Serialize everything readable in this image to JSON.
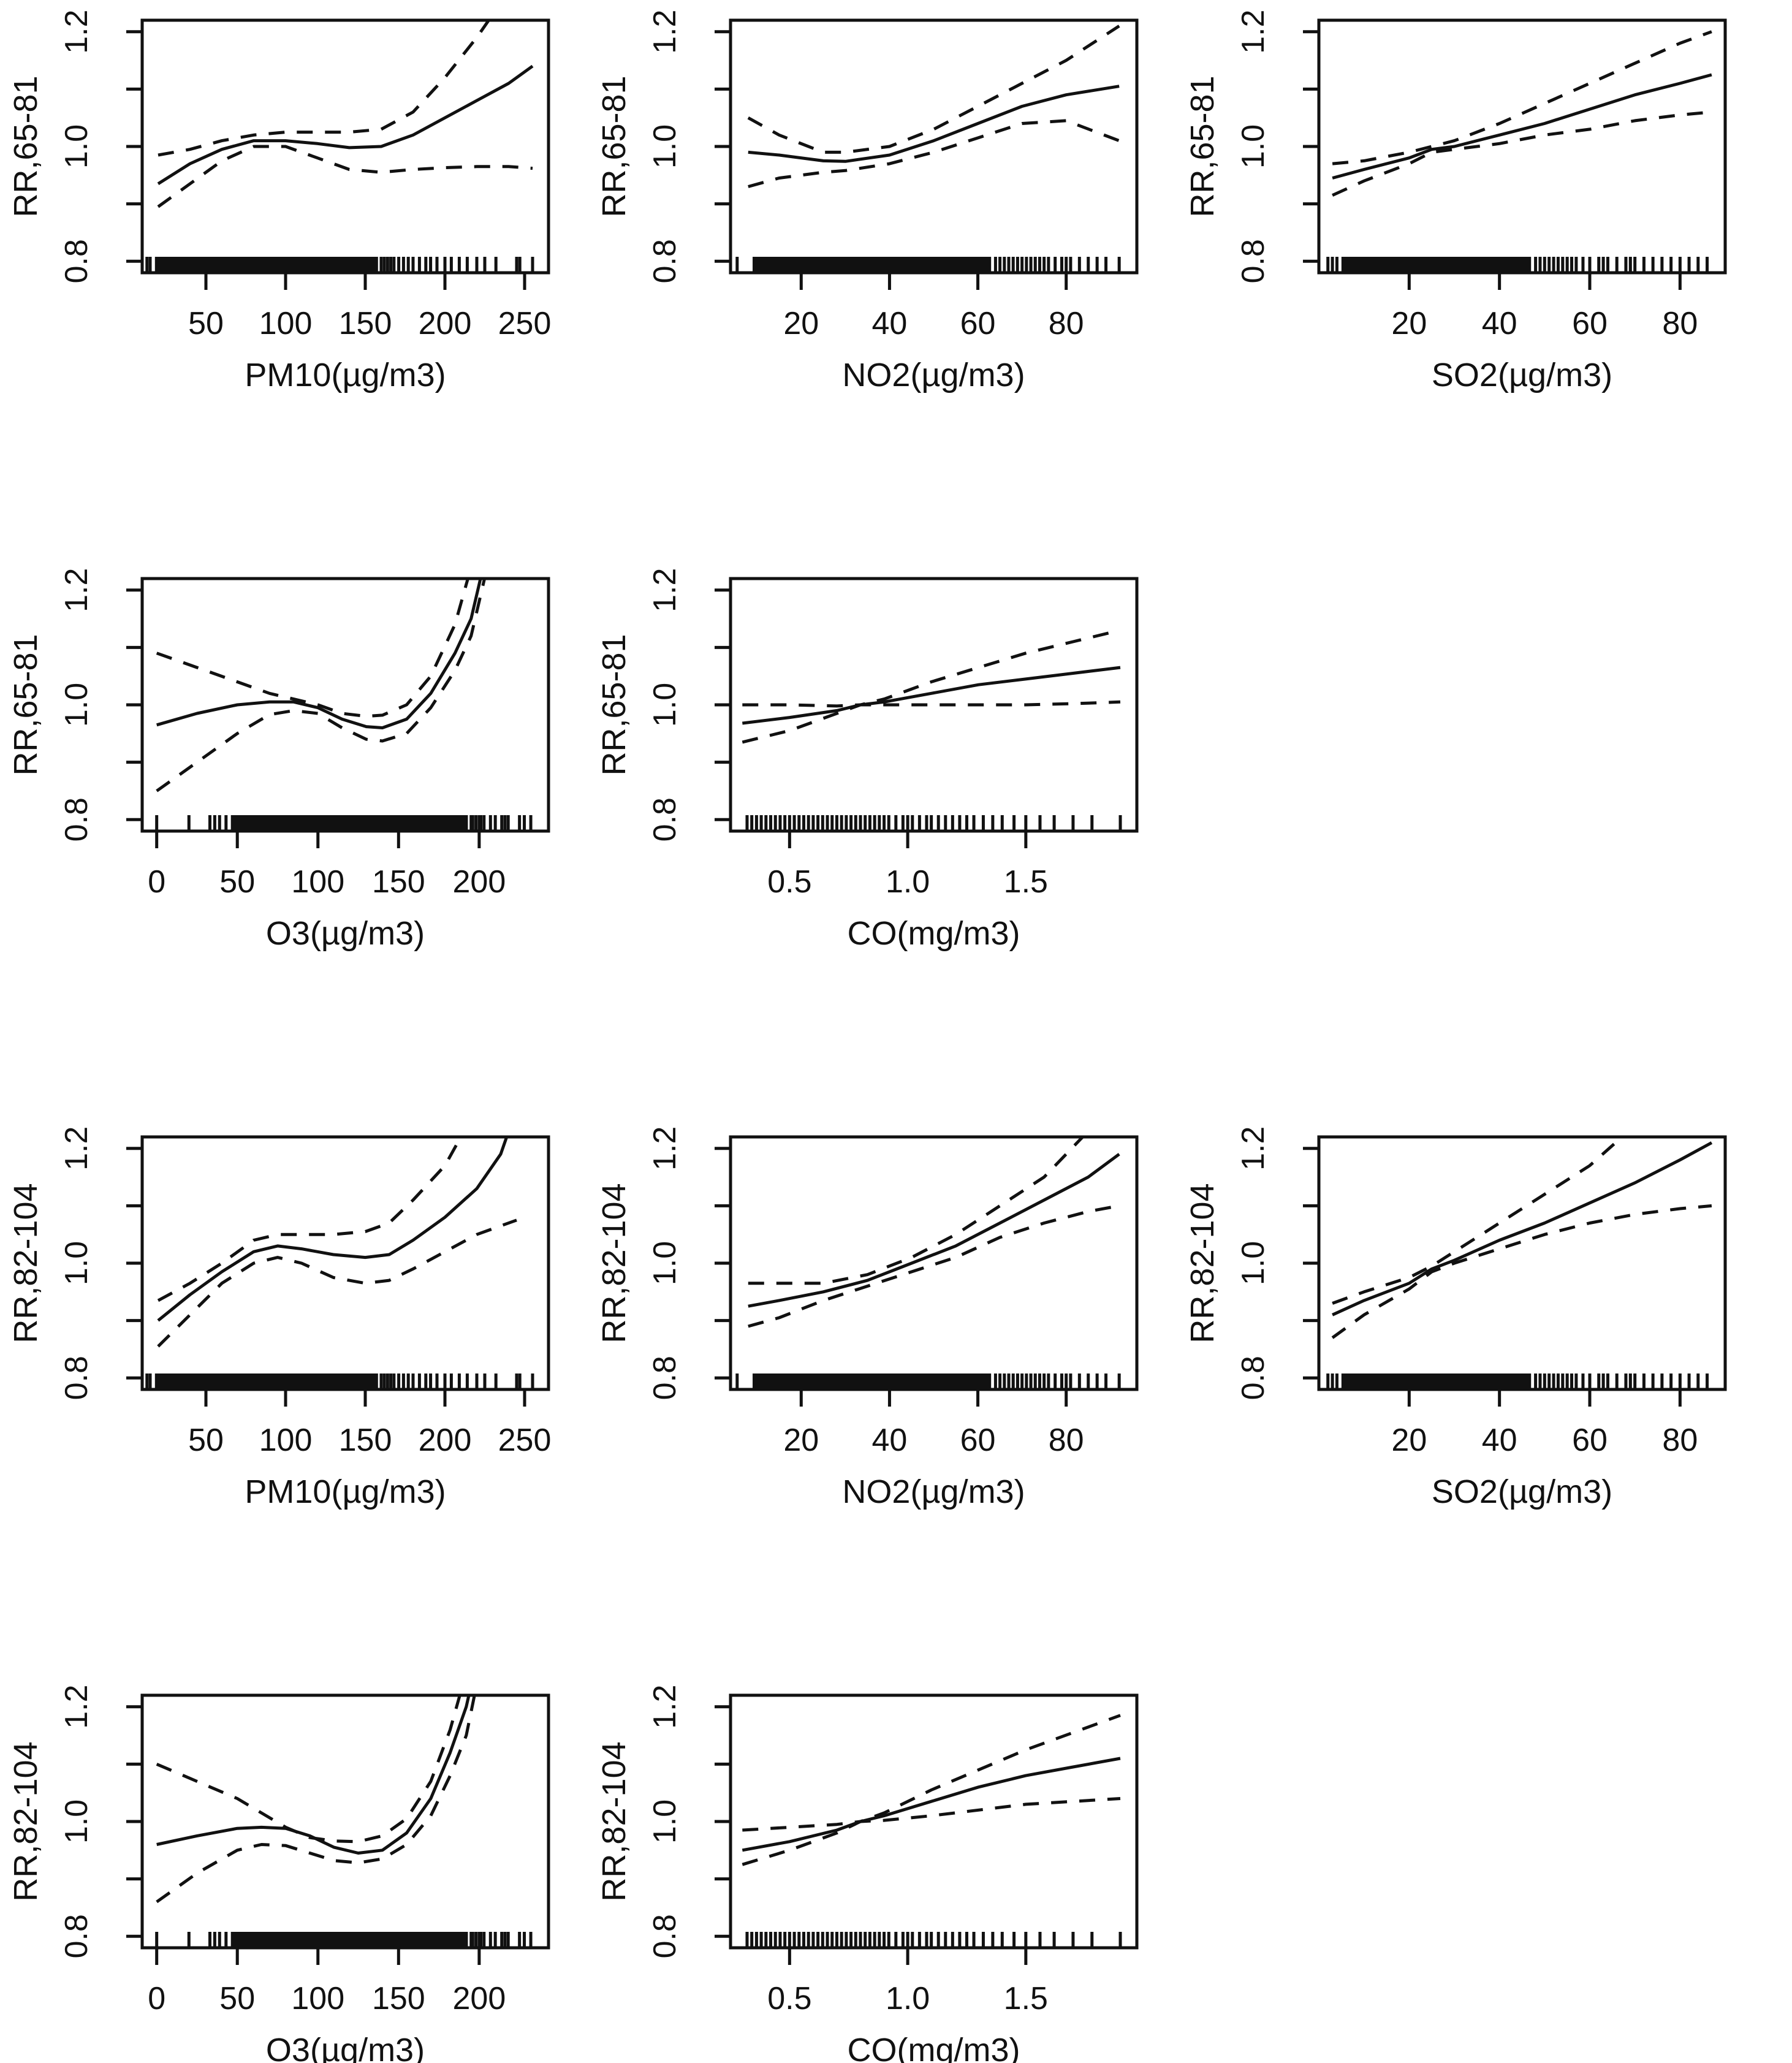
{
  "figure": {
    "background": "#ffffff",
    "ink_color": "#111111",
    "description": "Exposure-response curves: relative risk (RR) with 95% confidence bands vs pollutant concentrations, with data rug along the x-axis"
  },
  "axes_common": {
    "y_ticks": [
      0.8,
      0.9,
      1.0,
      1.1,
      1.2
    ],
    "y_labeled_ticks": [
      "0.8",
      "1.0",
      "1.2"
    ],
    "y_range": [
      0.78,
      1.22
    ]
  },
  "x_axes": {
    "PM10": {
      "label": "PM10(µg/m3)",
      "range": [
        10,
        265
      ],
      "ticks": [
        50,
        100,
        150,
        200,
        250
      ],
      "tick_labels": [
        "50",
        "100",
        "150",
        "200",
        "250"
      ]
    },
    "NO2": {
      "label": "NO2(µg/m3)",
      "range": [
        4,
        96
      ],
      "ticks": [
        20,
        40,
        60,
        80
      ],
      "tick_labels": [
        "20",
        "40",
        "60",
        "80"
      ]
    },
    "SO2": {
      "label": "SO2(µg/m3)",
      "range": [
        0,
        90
      ],
      "ticks": [
        20,
        40,
        60,
        80
      ],
      "tick_labels": [
        "20",
        "40",
        "60",
        "80"
      ]
    },
    "O3": {
      "label": "O3(µg/m3)",
      "range": [
        -9,
        243
      ],
      "ticks": [
        0,
        50,
        100,
        150,
        200
      ],
      "tick_labels": [
        "0",
        "50",
        "100",
        "150",
        "200"
      ]
    },
    "CO": {
      "label": "CO(mg/m3)",
      "range": [
        0.25,
        1.97
      ],
      "ticks": [
        0.5,
        1.0,
        1.5
      ],
      "tick_labels": [
        "0.5",
        "1.0",
        "1.5"
      ]
    }
  },
  "rugs": {
    "PM10": {
      "dense": [
        [
          18,
          158
        ]
      ],
      "ticks": [
        13,
        15,
        160,
        162,
        164,
        166,
        168,
        171,
        174,
        177,
        180,
        184,
        188,
        191,
        195,
        200,
        204,
        209,
        214,
        220,
        225,
        232,
        245,
        247,
        255
      ]
    },
    "NO2": {
      "dense": [
        [
          9,
          63
        ]
      ],
      "ticks": [
        5.5,
        64,
        65,
        66,
        67,
        68,
        69,
        70,
        71,
        72,
        73,
        74,
        75,
        76,
        77.5,
        79,
        80,
        81,
        83,
        85,
        87,
        89,
        92
      ]
    },
    "SO2": {
      "dense": [
        [
          5,
          47
        ]
      ],
      "ticks": [
        2,
        3,
        4,
        48,
        49,
        50,
        51,
        52,
        53,
        54,
        55,
        56,
        57,
        58.5,
        60,
        62,
        63,
        64,
        66,
        68,
        69,
        70,
        72,
        74,
        76,
        78,
        80,
        82,
        84,
        86
      ]
    },
    "O3": {
      "dense": [
        [
          46,
          193
        ]
      ],
      "ticks": [
        0,
        20,
        33,
        36,
        39,
        43,
        195,
        196,
        198,
        200,
        201,
        203,
        207,
        210,
        214,
        216,
        218,
        225,
        228,
        232
      ]
    },
    "CO": {
      "dense": [],
      "ticks": [
        0.32,
        0.34,
        0.36,
        0.38,
        0.4,
        0.42,
        0.44,
        0.46,
        0.48,
        0.5,
        0.52,
        0.54,
        0.56,
        0.58,
        0.6,
        0.62,
        0.64,
        0.66,
        0.68,
        0.7,
        0.72,
        0.74,
        0.76,
        0.78,
        0.8,
        0.82,
        0.84,
        0.86,
        0.88,
        0.9,
        0.92,
        0.95,
        0.98,
        1.0,
        1.02,
        1.05,
        1.08,
        1.1,
        1.13,
        1.16,
        1.19,
        1.22,
        1.25,
        1.28,
        1.32,
        1.36,
        1.4,
        1.45,
        1.5,
        1.56,
        1.62,
        1.7,
        1.78,
        1.9
      ]
    }
  },
  "chart_data": [
    {
      "type": "line",
      "xlabel": "PM10(µg/m3)",
      "ylabel": "RR,65-81",
      "x_axis": "PM10",
      "x": [
        20,
        40,
        60,
        80,
        100,
        120,
        140,
        160,
        180,
        200,
        220,
        240,
        255
      ],
      "solid": [
        0.935,
        0.97,
        0.995,
        1.01,
        1.01,
        1.005,
        0.998,
        1.0,
        1.02,
        1.05,
        1.08,
        1.11,
        1.14
      ],
      "upper": [
        0.985,
        0.995,
        1.01,
        1.02,
        1.025,
        1.025,
        1.025,
        1.03,
        1.06,
        1.12,
        1.19,
        1.27,
        1.3
      ],
      "lower": [
        0.895,
        0.935,
        0.975,
        1.0,
        1.0,
        0.98,
        0.96,
        0.955,
        0.96,
        0.963,
        0.965,
        0.965,
        0.962
      ]
    },
    {
      "type": "line",
      "xlabel": "NO2(µg/m3)",
      "ylabel": "RR,65-81",
      "x_axis": "NO2",
      "x": [
        8,
        15,
        25,
        30,
        40,
        50,
        60,
        70,
        80,
        92
      ],
      "solid": [
        0.99,
        0.985,
        0.975,
        0.974,
        0.985,
        1.01,
        1.04,
        1.07,
        1.09,
        1.105
      ],
      "upper": [
        1.05,
        1.02,
        0.99,
        0.99,
        1.0,
        1.03,
        1.07,
        1.11,
        1.15,
        1.21
      ],
      "lower": [
        0.93,
        0.945,
        0.955,
        0.958,
        0.97,
        0.99,
        1.015,
        1.04,
        1.045,
        1.01
      ]
    },
    {
      "type": "line",
      "xlabel": "SO2(µg/m3)",
      "ylabel": "RR,65-81",
      "x_axis": "SO2",
      "x": [
        3,
        10,
        20,
        25,
        30,
        40,
        50,
        60,
        70,
        80,
        87
      ],
      "solid": [
        0.945,
        0.96,
        0.98,
        0.995,
        1.0,
        1.02,
        1.04,
        1.065,
        1.09,
        1.11,
        1.125
      ],
      "upper": [
        0.97,
        0.975,
        0.99,
        1.0,
        1.01,
        1.04,
        1.075,
        1.11,
        1.145,
        1.18,
        1.2
      ],
      "lower": [
        0.915,
        0.94,
        0.97,
        0.99,
        0.995,
        1.005,
        1.02,
        1.03,
        1.045,
        1.055,
        1.06
      ]
    },
    {
      "type": "line",
      "xlabel": "O3(µg/m3)",
      "ylabel": "RR,65-81",
      "x_axis": "O3",
      "x": [
        0,
        25,
        50,
        70,
        85,
        100,
        115,
        130,
        140,
        155,
        170,
        185,
        195,
        205
      ],
      "solid": [
        0.965,
        0.985,
        1.0,
        1.005,
        1.005,
        0.995,
        0.975,
        0.962,
        0.96,
        0.975,
        1.02,
        1.09,
        1.15,
        1.27
      ],
      "upper": [
        1.09,
        1.065,
        1.04,
        1.02,
        1.01,
        1.0,
        0.985,
        0.98,
        0.982,
        1.0,
        1.05,
        1.14,
        1.24,
        1.3
      ],
      "lower": [
        0.85,
        0.9,
        0.95,
        0.983,
        0.99,
        0.985,
        0.96,
        0.94,
        0.937,
        0.95,
        0.995,
        1.06,
        1.12,
        1.24
      ]
    },
    {
      "type": "line",
      "xlabel": "CO(mg/m3)",
      "ylabel": "RR,65-81",
      "x_axis": "CO",
      "x": [
        0.3,
        0.5,
        0.7,
        0.8,
        0.9,
        1.1,
        1.3,
        1.5,
        1.7,
        1.9
      ],
      "solid": [
        0.968,
        0.978,
        0.99,
        1.0,
        1.005,
        1.02,
        1.035,
        1.045,
        1.055,
        1.065
      ],
      "upper": [
        0.935,
        0.955,
        0.985,
        1.0,
        1.01,
        1.04,
        1.065,
        1.09,
        1.11,
        1.13
      ],
      "lower": [
        1.0,
        1.0,
        0.998,
        1.0,
        1.0,
        1.0,
        1.0,
        1.0,
        1.002,
        1.005
      ]
    },
    null,
    {
      "type": "line",
      "xlabel": "PM10(µg/m3)",
      "ylabel": "RR,82-104",
      "x_axis": "PM10",
      "x": [
        20,
        40,
        60,
        80,
        95,
        110,
        130,
        150,
        165,
        180,
        200,
        220,
        235,
        245
      ],
      "solid": [
        0.9,
        0.945,
        0.985,
        1.02,
        1.03,
        1.025,
        1.015,
        1.01,
        1.015,
        1.04,
        1.08,
        1.13,
        1.19,
        1.27
      ],
      "upper": [
        0.935,
        0.965,
        1.0,
        1.04,
        1.05,
        1.05,
        1.05,
        1.055,
        1.07,
        1.11,
        1.17,
        1.27,
        1.3,
        1.32
      ],
      "lower": [
        0.855,
        0.91,
        0.965,
        1.0,
        1.01,
        1.0,
        0.975,
        0.965,
        0.97,
        0.99,
        1.02,
        1.05,
        1.065,
        1.075
      ]
    },
    {
      "type": "line",
      "xlabel": "NO2(µg/m3)",
      "ylabel": "RR,82-104",
      "x_axis": "NO2",
      "x": [
        8,
        15,
        25,
        35,
        45,
        55,
        65,
        75,
        85,
        92
      ],
      "solid": [
        0.925,
        0.935,
        0.95,
        0.97,
        1.0,
        1.03,
        1.07,
        1.11,
        1.15,
        1.19
      ],
      "upper": [
        0.965,
        0.965,
        0.965,
        0.98,
        1.01,
        1.05,
        1.1,
        1.15,
        1.23,
        1.28
      ],
      "lower": [
        0.89,
        0.905,
        0.935,
        0.96,
        0.985,
        1.01,
        1.045,
        1.07,
        1.09,
        1.1
      ]
    },
    {
      "type": "line",
      "xlabel": "SO2(µg/m3)",
      "ylabel": "RR,82-104",
      "x_axis": "SO2",
      "x": [
        3,
        10,
        20,
        25,
        30,
        40,
        50,
        60,
        70,
        80,
        87
      ],
      "solid": [
        0.91,
        0.935,
        0.965,
        0.99,
        1.005,
        1.04,
        1.07,
        1.105,
        1.14,
        1.18,
        1.21
      ],
      "upper": [
        0.93,
        0.95,
        0.975,
        0.995,
        1.02,
        1.07,
        1.12,
        1.17,
        1.24,
        1.3,
        1.33
      ],
      "lower": [
        0.87,
        0.91,
        0.955,
        0.985,
        1.0,
        1.025,
        1.05,
        1.07,
        1.085,
        1.095,
        1.1
      ]
    },
    {
      "type": "line",
      "xlabel": "O3(µg/m3)",
      "ylabel": "RR,82-104",
      "x_axis": "O3",
      "x": [
        0,
        25,
        50,
        65,
        80,
        95,
        110,
        125,
        140,
        155,
        170,
        182,
        192,
        200
      ],
      "solid": [
        0.96,
        0.975,
        0.988,
        0.99,
        0.988,
        0.975,
        0.955,
        0.945,
        0.95,
        0.98,
        1.04,
        1.12,
        1.2,
        1.3
      ],
      "upper": [
        1.1,
        1.07,
        1.04,
        1.015,
        0.99,
        0.972,
        0.966,
        0.965,
        0.975,
        1.005,
        1.07,
        1.16,
        1.26,
        1.32
      ],
      "lower": [
        0.86,
        0.91,
        0.95,
        0.96,
        0.958,
        0.945,
        0.932,
        0.928,
        0.935,
        0.96,
        1.01,
        1.08,
        1.15,
        1.26
      ]
    },
    {
      "type": "line",
      "xlabel": "CO(mg/m3)",
      "ylabel": "RR,82-104",
      "x_axis": "CO",
      "x": [
        0.3,
        0.5,
        0.7,
        0.8,
        0.9,
        1.1,
        1.3,
        1.5,
        1.7,
        1.9
      ],
      "solid": [
        0.95,
        0.965,
        0.985,
        1.0,
        1.01,
        1.035,
        1.06,
        1.08,
        1.095,
        1.11
      ],
      "upper": [
        0.925,
        0.95,
        0.98,
        1.0,
        1.015,
        1.055,
        1.09,
        1.125,
        1.155,
        1.185
      ],
      "lower": [
        0.985,
        0.99,
        0.995,
        1.0,
        1.002,
        1.01,
        1.02,
        1.03,
        1.035,
        1.04
      ]
    },
    null
  ],
  "grid": {
    "rows": 4,
    "cols": 3,
    "note": "solid line = estimated RR; dashed lines = 95% confidence band; black marks on x-axis = observation rug"
  }
}
